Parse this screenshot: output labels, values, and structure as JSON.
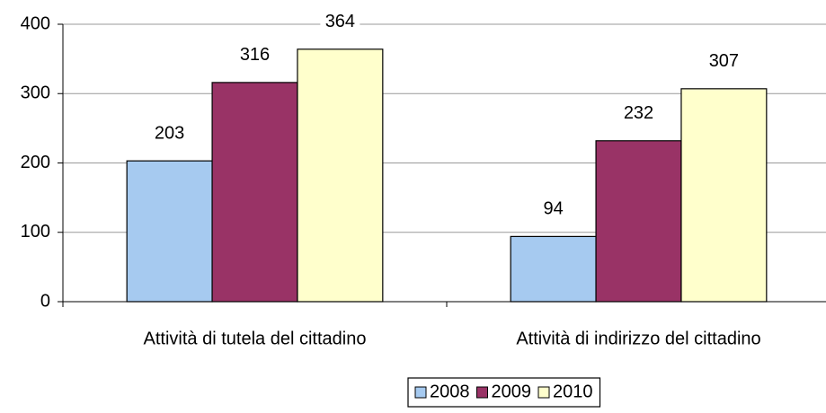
{
  "chart_data": {
    "type": "bar",
    "categories": [
      "Attività di tutela del cittadino",
      "Attività di indirizzo del cittadino"
    ],
    "series": [
      {
        "name": "2008",
        "color": "#a6caf0",
        "values": [
          203,
          94
        ]
      },
      {
        "name": "2009",
        "color": "#993366",
        "values": [
          316,
          232
        ]
      },
      {
        "name": "2010",
        "color": "#ffffcc",
        "values": [
          364,
          307
        ]
      }
    ],
    "ylim": [
      0,
      400
    ],
    "yticks": [
      0,
      100,
      200,
      300,
      400
    ],
    "grid": true,
    "legend": "bottom"
  }
}
